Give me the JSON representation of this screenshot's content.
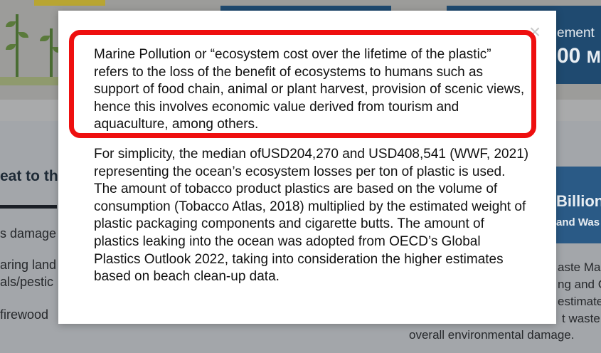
{
  "background": {
    "card_top_right": {
      "label": "ement",
      "value": "00",
      "unit": "M"
    },
    "section_heading": "eat to th",
    "left_items": [
      "s damage",
      "aring land",
      "als/pestic",
      "firewood"
    ],
    "card_right": {
      "value": "Billion",
      "caption": "and Was"
    },
    "right_text": [
      "aste Mar",
      "ng and C",
      "estimate",
      "t waste,",
      "overall environmental damage."
    ]
  },
  "modal": {
    "close_glyph": "×",
    "paragraph_1": "Marine Pollution or “ecosystem cost over the lifetime of the plastic” refers to the loss of the benefit of ecosystems to humans such as support of food chain, animal or plant harvest, provision of scenic views, hence this involves economic value derived from tourism and aquaculture, among others.",
    "paragraph_2": "For simplicity, the median ofUSD204,270 and USD408,541 (WWF, 2021) representing the ocean’s ecosystem losses per ton of plastic is used. The amount of tobacco product plastics are based on the volume of consumption (Tobacco Atlas, 2018) multiplied by the estimated weight of plastic packaging components and cigarette butts. The amount of plastics leaking into the ocean was adopted from OECD’s Global Plastics Outlook 2022, taking into consideration the higher estimates based on beach clean-up data."
  },
  "colors": {
    "annotation": "#ee0f0f",
    "overlay": "#9ea0a3",
    "card": "#1f4a70"
  }
}
